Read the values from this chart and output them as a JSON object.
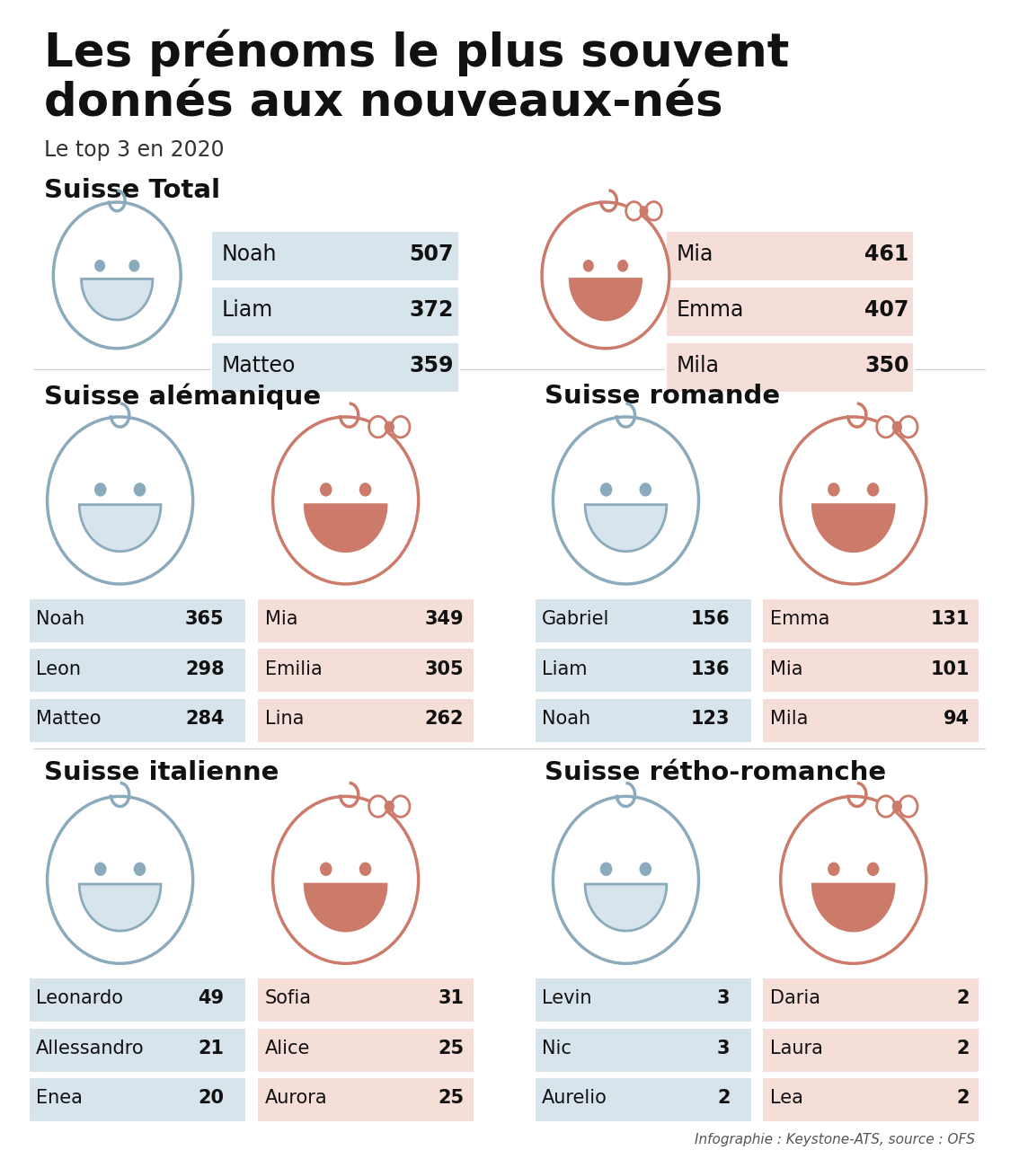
{
  "title": "Les prénoms le plus souvent\ndonnés aux nouveaux-nés",
  "subtitle": "Le top 3 en 2020",
  "bg_color": "#ffffff",
  "boy_color": "#8BAABB",
  "girl_color": "#CC7A6A",
  "boy_bg": "#D8E4EC",
  "girl_bg": "#F5DDD8",
  "sections": [
    {
      "label": "Suisse Total",
      "boys": [
        [
          "Noah",
          "507"
        ],
        [
          "Liam",
          "372"
        ],
        [
          "Matteo",
          "359"
        ]
      ],
      "girls": [
        [
          "Mia",
          "461"
        ],
        [
          "Emma",
          "407"
        ],
        [
          "Mila",
          "350"
        ]
      ]
    },
    {
      "label": "Suisse alémanique",
      "boys": [
        [
          "Noah",
          "365"
        ],
        [
          "Leon",
          "298"
        ],
        [
          "Matteo",
          "284"
        ]
      ],
      "girls": [
        [
          "Mia",
          "349"
        ],
        [
          "Emilia",
          "305"
        ],
        [
          "Lina",
          "262"
        ]
      ]
    },
    {
      "label": "Suisse romande",
      "boys": [
        [
          "Gabriel",
          "156"
        ],
        [
          "Liam",
          "136"
        ],
        [
          "Noah",
          "123"
        ]
      ],
      "girls": [
        [
          "Emma",
          "131"
        ],
        [
          "Mia",
          "101"
        ],
        [
          "Mila",
          "94"
        ]
      ]
    },
    {
      "label": "Suisse italienne",
      "boys": [
        [
          "Leonardo",
          "49"
        ],
        [
          "Allessandro",
          "21"
        ],
        [
          "Enea",
          "20"
        ]
      ],
      "girls": [
        [
          "Sofia",
          "31"
        ],
        [
          "Alice",
          "25"
        ],
        [
          "Aurora",
          "25"
        ]
      ]
    },
    {
      "label": "Suisse rétho-romanche",
      "boys": [
        [
          "Levin",
          "3"
        ],
        [
          "Nic",
          "3"
        ],
        [
          "Aurelio",
          "2"
        ]
      ],
      "girls": [
        [
          "Daria",
          "2"
        ],
        [
          "Laura",
          "2"
        ],
        [
          "Lea",
          "2"
        ]
      ]
    }
  ],
  "footer": "Infographie : Keystone-ATS, source : OFS"
}
